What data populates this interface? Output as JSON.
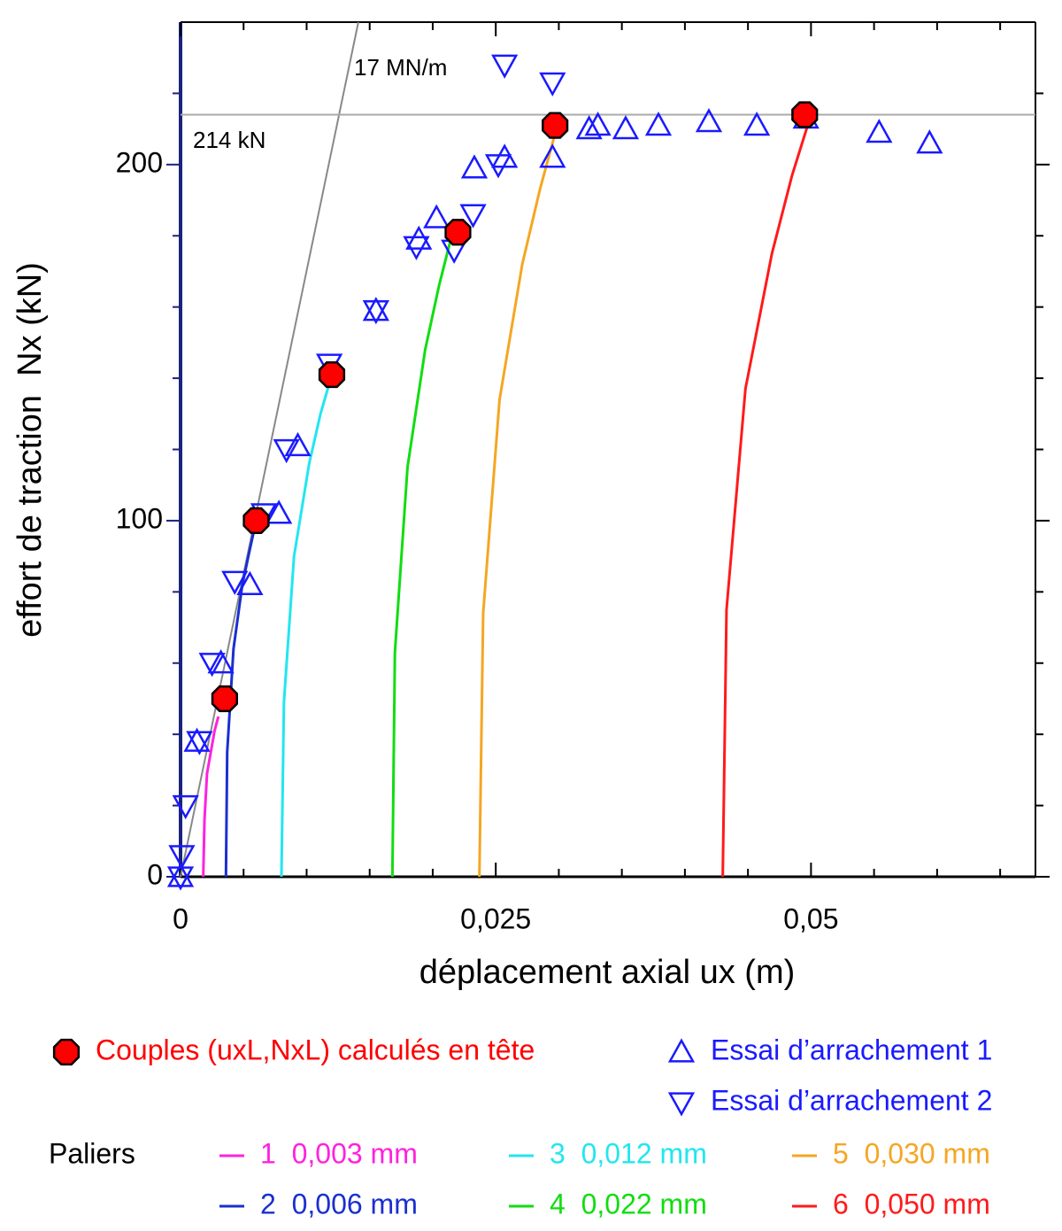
{
  "chart_data": {
    "type": "scatter",
    "x_label": "déplacement axial ux (m)",
    "y_label": "effort de traction  Nx (kN)",
    "xlim": [
      0,
      0.0678
    ],
    "ylim": [
      0,
      240
    ],
    "xticks": [
      0,
      {
        "value": 0.025,
        "label": "0,025"
      },
      {
        "value": 0.05,
        "label": "0,05"
      }
    ],
    "yticks": [
      0,
      100,
      200
    ],
    "x_minor_ticks": [
      0.005,
      0.01,
      0.015,
      0.02,
      0.03,
      0.035,
      0.04,
      0.045,
      0.055,
      0.06,
      0.065
    ],
    "y_minor_ticks": [
      20,
      40,
      60,
      80,
      120,
      140,
      160,
      180,
      220
    ],
    "reference_lines": [
      {
        "label": "17 MN/m",
        "x": [
          0,
          0.0141
        ],
        "y": [
          0,
          240
        ],
        "color": "#888888"
      },
      {
        "label": "214 kN",
        "x": [
          0,
          0.0678
        ],
        "y": [
          214,
          214
        ],
        "color": "#aaaaaa"
      }
    ],
    "series": [
      {
        "name": "Couples (uxL,NxL) calculés en tête",
        "marker": "octagon",
        "color": "#ff0000",
        "x": [
          0.0035,
          0.006,
          0.012,
          0.022,
          0.0297,
          0.0495
        ],
        "values": [
          50,
          100,
          141,
          181,
          211,
          214
        ]
      },
      {
        "name": "Essai d’arrachement 1",
        "marker": "triangle-up",
        "color": "#1a1aff",
        "x": [
          0,
          0.0013,
          0.0032,
          0.0055,
          0.0078,
          0.0093,
          0.0155,
          0.0189,
          0.0203,
          0.0233,
          0.0257,
          0.0295,
          0.0324,
          0.0331,
          0.0353,
          0.0379,
          0.0419,
          0.0457,
          0.0496,
          0.0554,
          0.0594
        ],
        "values": [
          0,
          38,
          60,
          82,
          102,
          121,
          159,
          179,
          185,
          199,
          202,
          202,
          210,
          211,
          210,
          211,
          212,
          211,
          213,
          209,
          206
        ]
      },
      {
        "name": "Essai d’arrachement 2",
        "marker": "triangle-down",
        "color": "#1a1aff",
        "x": [
          0,
          0.0001,
          0.0004,
          0.0015,
          0.0025,
          0.0043,
          0.0066,
          0.0084,
          0.0118,
          0.0155,
          0.0187,
          0.0217,
          0.0232,
          0.0252,
          0.0257,
          0.0295
        ],
        "values": [
          0,
          6,
          20,
          38,
          60,
          83,
          102,
          120,
          144,
          159,
          177,
          176,
          186,
          200,
          228,
          223
        ]
      }
    ],
    "paliers_label": "Paliers",
    "paliers": [
      {
        "name": "1  0,003 mm",
        "color": "#ff22dd",
        "x": [
          0.0018,
          0.0019,
          0.0021,
          0.0025,
          0.0027,
          0.003
        ],
        "values": [
          0,
          16,
          29,
          37,
          41,
          45
        ]
      },
      {
        "name": "2  0,006 mm",
        "color": "#1a2fd0",
        "x": [
          0.0036,
          0.0037,
          0.0042,
          0.0049,
          0.0055,
          0.006
        ],
        "values": [
          0,
          35,
          64,
          82,
          92,
          100
        ]
      },
      {
        "name": "3  0,012 mm",
        "color": "#22e6f0",
        "x": [
          0.008,
          0.0082,
          0.009,
          0.0102,
          0.0111,
          0.012
        ],
        "values": [
          0,
          49,
          90,
          116,
          130,
          141
        ]
      },
      {
        "name": "4  0,022 mm",
        "color": "#11dd11",
        "x": [
          0.0168,
          0.017,
          0.018,
          0.0194,
          0.0205,
          0.0215
        ],
        "values": [
          0,
          63,
          115,
          148,
          166,
          180
        ]
      },
      {
        "name": "5  0,030 mm",
        "color": "#f5a623",
        "x": [
          0.0237,
          0.024,
          0.0253,
          0.0271,
          0.0285,
          0.0298
        ],
        "values": [
          0,
          74,
          134,
          172,
          193,
          210
        ]
      },
      {
        "name": "6  0,050 mm",
        "color": "#ff1a1a",
        "x": [
          0.043,
          0.0433,
          0.0448,
          0.0469,
          0.0485,
          0.05
        ],
        "values": [
          0,
          75,
          137,
          175,
          197,
          214
        ]
      }
    ]
  }
}
